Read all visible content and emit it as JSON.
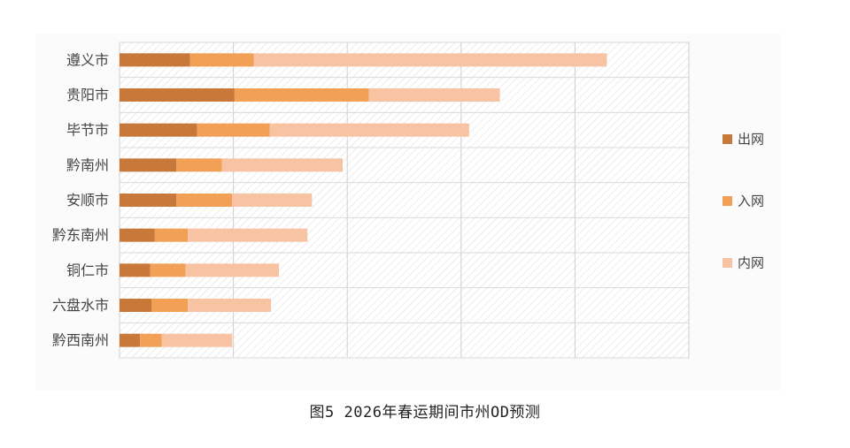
{
  "caption": "图5  2026年春运期间市州OD预测",
  "chart_data": {
    "type": "bar",
    "orientation": "horizontal",
    "stacked": true,
    "categories": [
      "遵义市",
      "贵阳市",
      "毕节市",
      "黔南州",
      "安顺市",
      "黔东南州",
      "铜仁市",
      "六盘水市",
      "黔西南州"
    ],
    "series": [
      {
        "name": "出网",
        "color": "#c8793a",
        "values": [
          62,
          101,
          68,
          50,
          50,
          31,
          27,
          28,
          18
        ]
      },
      {
        "name": "入网",
        "color": "#f2a055",
        "values": [
          56,
          118,
          64,
          40,
          49,
          29,
          31,
          32,
          19
        ]
      },
      {
        "name": "内网",
        "color": "#f8c3a3",
        "values": [
          310,
          115,
          175,
          106,
          70,
          105,
          82,
          73,
          62
        ]
      }
    ],
    "xlim": [
      0,
      500
    ],
    "grid": true,
    "legend_position": "right"
  }
}
